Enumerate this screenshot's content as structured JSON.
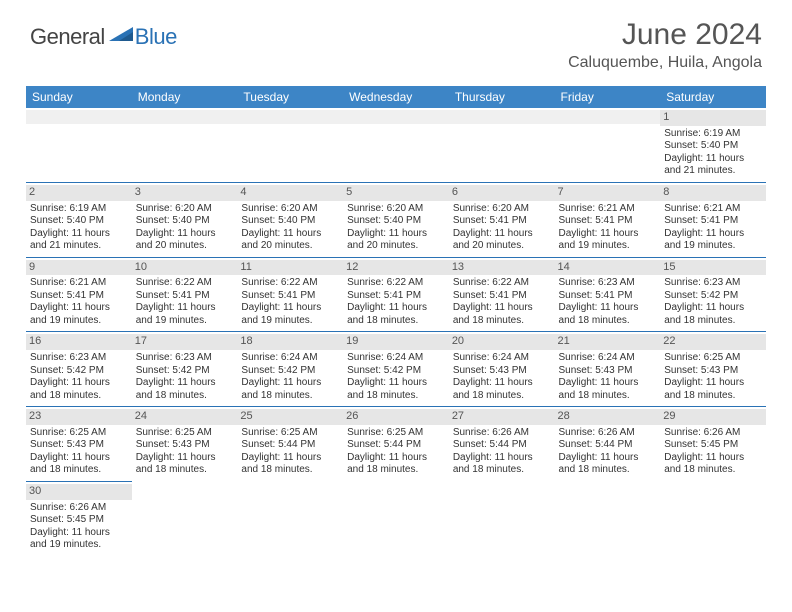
{
  "logo": {
    "general": "General",
    "blue": "Blue",
    "triangle_color": "#2a72b5"
  },
  "title": "June 2024",
  "location": "Caluquembe, Huila, Angola",
  "header_bg": "#3d85c6",
  "day_headers": [
    "Sunday",
    "Monday",
    "Tuesday",
    "Wednesday",
    "Thursday",
    "Friday",
    "Saturday"
  ],
  "weeks": [
    [
      null,
      null,
      null,
      null,
      null,
      null,
      {
        "n": "1",
        "sr": "6:19 AM",
        "ss": "5:40 PM",
        "dl": "11 hours and 21 minutes."
      }
    ],
    [
      {
        "n": "2",
        "sr": "6:19 AM",
        "ss": "5:40 PM",
        "dl": "11 hours and 21 minutes."
      },
      {
        "n": "3",
        "sr": "6:20 AM",
        "ss": "5:40 PM",
        "dl": "11 hours and 20 minutes."
      },
      {
        "n": "4",
        "sr": "6:20 AM",
        "ss": "5:40 PM",
        "dl": "11 hours and 20 minutes."
      },
      {
        "n": "5",
        "sr": "6:20 AM",
        "ss": "5:40 PM",
        "dl": "11 hours and 20 minutes."
      },
      {
        "n": "6",
        "sr": "6:20 AM",
        "ss": "5:41 PM",
        "dl": "11 hours and 20 minutes."
      },
      {
        "n": "7",
        "sr": "6:21 AM",
        "ss": "5:41 PM",
        "dl": "11 hours and 19 minutes."
      },
      {
        "n": "8",
        "sr": "6:21 AM",
        "ss": "5:41 PM",
        "dl": "11 hours and 19 minutes."
      }
    ],
    [
      {
        "n": "9",
        "sr": "6:21 AM",
        "ss": "5:41 PM",
        "dl": "11 hours and 19 minutes."
      },
      {
        "n": "10",
        "sr": "6:22 AM",
        "ss": "5:41 PM",
        "dl": "11 hours and 19 minutes."
      },
      {
        "n": "11",
        "sr": "6:22 AM",
        "ss": "5:41 PM",
        "dl": "11 hours and 19 minutes."
      },
      {
        "n": "12",
        "sr": "6:22 AM",
        "ss": "5:41 PM",
        "dl": "11 hours and 18 minutes."
      },
      {
        "n": "13",
        "sr": "6:22 AM",
        "ss": "5:41 PM",
        "dl": "11 hours and 18 minutes."
      },
      {
        "n": "14",
        "sr": "6:23 AM",
        "ss": "5:41 PM",
        "dl": "11 hours and 18 minutes."
      },
      {
        "n": "15",
        "sr": "6:23 AM",
        "ss": "5:42 PM",
        "dl": "11 hours and 18 minutes."
      }
    ],
    [
      {
        "n": "16",
        "sr": "6:23 AM",
        "ss": "5:42 PM",
        "dl": "11 hours and 18 minutes."
      },
      {
        "n": "17",
        "sr": "6:23 AM",
        "ss": "5:42 PM",
        "dl": "11 hours and 18 minutes."
      },
      {
        "n": "18",
        "sr": "6:24 AM",
        "ss": "5:42 PM",
        "dl": "11 hours and 18 minutes."
      },
      {
        "n": "19",
        "sr": "6:24 AM",
        "ss": "5:42 PM",
        "dl": "11 hours and 18 minutes."
      },
      {
        "n": "20",
        "sr": "6:24 AM",
        "ss": "5:43 PM",
        "dl": "11 hours and 18 minutes."
      },
      {
        "n": "21",
        "sr": "6:24 AM",
        "ss": "5:43 PM",
        "dl": "11 hours and 18 minutes."
      },
      {
        "n": "22",
        "sr": "6:25 AM",
        "ss": "5:43 PM",
        "dl": "11 hours and 18 minutes."
      }
    ],
    [
      {
        "n": "23",
        "sr": "6:25 AM",
        "ss": "5:43 PM",
        "dl": "11 hours and 18 minutes."
      },
      {
        "n": "24",
        "sr": "6:25 AM",
        "ss": "5:43 PM",
        "dl": "11 hours and 18 minutes."
      },
      {
        "n": "25",
        "sr": "6:25 AM",
        "ss": "5:44 PM",
        "dl": "11 hours and 18 minutes."
      },
      {
        "n": "26",
        "sr": "6:25 AM",
        "ss": "5:44 PM",
        "dl": "11 hours and 18 minutes."
      },
      {
        "n": "27",
        "sr": "6:26 AM",
        "ss": "5:44 PM",
        "dl": "11 hours and 18 minutes."
      },
      {
        "n": "28",
        "sr": "6:26 AM",
        "ss": "5:44 PM",
        "dl": "11 hours and 18 minutes."
      },
      {
        "n": "29",
        "sr": "6:26 AM",
        "ss": "5:45 PM",
        "dl": "11 hours and 18 minutes."
      }
    ],
    [
      {
        "n": "30",
        "sr": "6:26 AM",
        "ss": "5:45 PM",
        "dl": "11 hours and 19 minutes."
      },
      null,
      null,
      null,
      null,
      null,
      null
    ]
  ],
  "labels": {
    "sunrise": "Sunrise: ",
    "sunset": "Sunset: ",
    "daylight": "Daylight: "
  }
}
